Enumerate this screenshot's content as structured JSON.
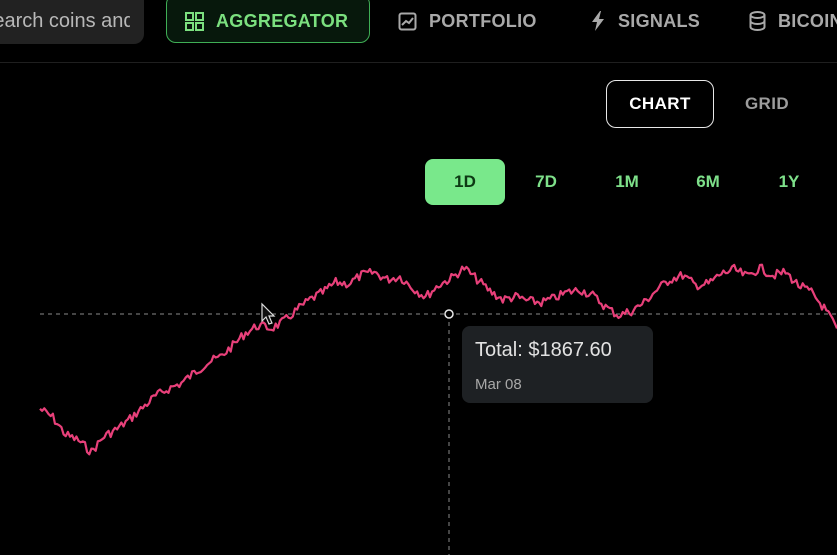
{
  "topnav": {
    "search": {
      "placeholder": "Search coins and items",
      "value": ""
    },
    "items": [
      {
        "label": "AGGREGATOR",
        "icon": "grid-icon",
        "active": true
      },
      {
        "label": "PORTFOLIO",
        "icon": "chart-line-icon",
        "active": false
      },
      {
        "label": "SIGNALS",
        "icon": "lightning-icon",
        "active": false
      },
      {
        "label": "BICOIN",
        "icon": "coin-stack-icon",
        "active": false
      }
    ]
  },
  "view_toggle": {
    "chart_label": "CHART",
    "grid_label": "GRID",
    "selected": "CHART"
  },
  "ranges": {
    "options": [
      "1D",
      "7D",
      "1M",
      "6M",
      "1Y"
    ],
    "selected": "1D"
  },
  "chart": {
    "tooltip_total": "Total: $1867.60",
    "tooltip_date": "Mar 08",
    "line_color": "#e8407a",
    "accent_green": "#79e88b"
  },
  "chart_data": {
    "type": "line",
    "title": "",
    "xlabel": "",
    "ylabel": "",
    "series": [
      {
        "values": [
          1790,
          1784,
          1772,
          1768,
          1760,
          1771,
          1776,
          1783,
          1791,
          1799,
          1804,
          1808,
          1815,
          1822,
          1826,
          1834,
          1843,
          1848,
          1846,
          1851,
          1859,
          1866,
          1871,
          1878,
          1877,
          1883,
          1885,
          1880,
          1882,
          1874,
          1868,
          1876,
          1881,
          1888,
          1880,
          1872,
          1866,
          1868,
          1865,
          1864,
          1867,
          1871,
          1873,
          1869,
          1861,
          1855,
          1858,
          1864,
          1873,
          1880,
          1883,
          1876,
          1877,
          1884,
          1887,
          1882,
          1888,
          1883,
          1885,
          1876,
          1871,
          1860,
          1846
        ]
      }
    ]
  }
}
